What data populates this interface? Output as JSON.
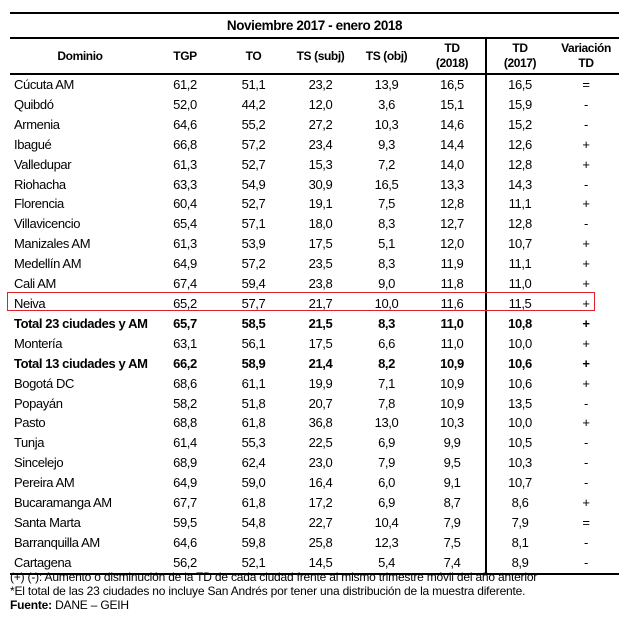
{
  "title": "Noviembre 2017 - enero 2018",
  "headers": {
    "dominio": "Dominio",
    "tgp": "TGP",
    "to": "TO",
    "ts_subj": "TS (subj)",
    "ts_obj": "TS (obj)",
    "td2018_a": "TD",
    "td2018_b": "(2018)",
    "td2017_a": "TD",
    "td2017_b": "(2017)",
    "var": "Variación TD"
  },
  "rows": [
    [
      "Cúcuta AM",
      "61,2",
      "51,1",
      "23,2",
      "13,9",
      "16,5",
      "16,5",
      "="
    ],
    [
      "Quibdó",
      "52,0",
      "44,2",
      "12,0",
      "3,6",
      "15,1",
      "15,9",
      "-"
    ],
    [
      "Armenia",
      "64,6",
      "55,2",
      "27,2",
      "10,3",
      "14,6",
      "15,2",
      "-"
    ],
    [
      "Ibagué",
      "66,8",
      "57,2",
      "23,4",
      "9,3",
      "14,4",
      "12,6",
      "+"
    ],
    [
      "Valledupar",
      "61,3",
      "52,7",
      "15,3",
      "7,2",
      "14,0",
      "12,8",
      "+"
    ],
    [
      "Riohacha",
      "63,3",
      "54,9",
      "30,9",
      "16,5",
      "13,3",
      "14,3",
      "-"
    ],
    [
      "Florencia",
      "60,4",
      "52,7",
      "19,1",
      "7,5",
      "12,8",
      "11,1",
      "+"
    ],
    [
      "Villavicencio",
      "65,4",
      "57,1",
      "18,0",
      "8,3",
      "12,7",
      "12,8",
      "-"
    ],
    [
      "Manizales AM",
      "61,3",
      "53,9",
      "17,5",
      "5,1",
      "12,0",
      "10,7",
      "+"
    ],
    [
      "Medellín AM",
      "64,9",
      "57,2",
      "23,5",
      "8,3",
      "11,9",
      "11,1",
      "+"
    ],
    [
      "Cali AM",
      "67,4",
      "59,4",
      "23,8",
      "9,0",
      "11,8",
      "11,0",
      "+"
    ],
    [
      "Neiva",
      "65,2",
      "57,7",
      "21,7",
      "10,0",
      "11,6",
      "11,5",
      "+"
    ],
    [
      "Total 23 ciudades y AM",
      "65,7",
      "58,5",
      "21,5",
      "8,3",
      "11,0",
      "10,8",
      "+"
    ],
    [
      "Montería",
      "63,1",
      "56,1",
      "17,5",
      "6,6",
      "11,0",
      "10,0",
      "+"
    ],
    [
      "Total 13 ciudades y AM",
      "66,2",
      "58,9",
      "21,4",
      "8,2",
      "10,9",
      "10,6",
      "+"
    ],
    [
      "Bogotá DC",
      "68,6",
      "61,1",
      "19,9",
      "7,1",
      "10,9",
      "10,6",
      "+"
    ],
    [
      "Popayán",
      "58,2",
      "51,8",
      "20,7",
      "7,8",
      "10,9",
      "13,5",
      "-"
    ],
    [
      "Pasto",
      "68,8",
      "61,8",
      "36,8",
      "13,0",
      "10,3",
      "10,0",
      "+"
    ],
    [
      "Tunja",
      "61,4",
      "55,3",
      "22,5",
      "6,9",
      "9,9",
      "10,5",
      "-"
    ],
    [
      "Sincelejo",
      "68,9",
      "62,4",
      "23,0",
      "7,9",
      "9,5",
      "10,3",
      "-"
    ],
    [
      "Pereira AM",
      "64,9",
      "59,0",
      "16,4",
      "6,0",
      "9,1",
      "10,7",
      "-"
    ],
    [
      "Bucaramanga AM",
      "67,7",
      "61,8",
      "17,2",
      "6,9",
      "8,7",
      "8,6",
      "+"
    ],
    [
      "Santa Marta",
      "59,5",
      "54,8",
      "22,7",
      "10,4",
      "7,9",
      "7,9",
      "="
    ],
    [
      "Barranquilla AM",
      "64,6",
      "59,8",
      "25,8",
      "12,3",
      "7,5",
      "8,1",
      "-"
    ],
    [
      "Cartagena",
      "56,2",
      "52,1",
      "14,5",
      "5,4",
      "7,4",
      "8,9",
      "-"
    ]
  ],
  "bold_rows": [
    12,
    14
  ],
  "highlight_row": 11,
  "highlight_color": "#e0202a",
  "footnotes": {
    "note1": "(+) (-): Aumento o disminución de la TD de cada ciudad frente al mismo trimestre móvil  del año anterior",
    "note2": " *El total de las 23 ciudades no incluye San Andrés por tener una distribución de la muestra diferente.",
    "source_label": "Fuente:",
    "source_value": " DANE – GEIH"
  }
}
